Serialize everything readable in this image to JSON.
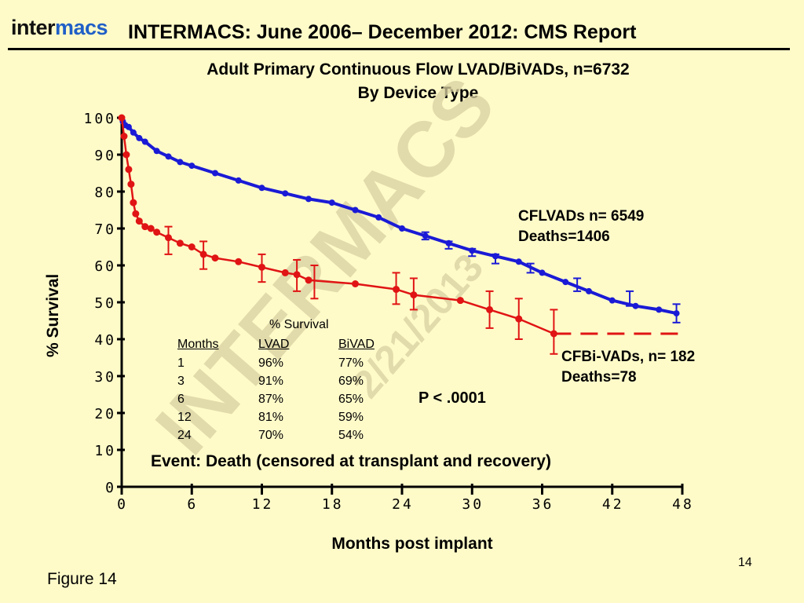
{
  "header": {
    "logo": {
      "text_dark": "inter",
      "text_brand": "macs",
      "brand_color": "#1f5fc7"
    },
    "title": "INTERMACS: June 2006– December 2012:  CMS Report"
  },
  "footer": {
    "figure_label": "Figure 14",
    "page_number": "14"
  },
  "watermark": {
    "main": "INTERMACS",
    "date": "2/21/2013"
  },
  "colors": {
    "background": "#fffbc9",
    "lvad": "#1a1ad6",
    "bivad": "#e01414"
  },
  "chart_data": {
    "type": "line",
    "title": "Adult Primary Continuous Flow LVAD/BiVADs, n=6732",
    "subtitle": "By Device Type",
    "xlabel": "Months post implant",
    "ylabel": "% Survival",
    "xlim": [
      0,
      48
    ],
    "ylim": [
      0,
      100
    ],
    "xticks": [
      0,
      6,
      12,
      18,
      24,
      30,
      36,
      42,
      48
    ],
    "yticks": [
      0,
      10,
      20,
      30,
      40,
      50,
      60,
      70,
      80,
      90,
      100
    ],
    "grid": false,
    "series": [
      {
        "name": "CFLVADs",
        "label_lines": [
          "CFLVADs n= 6549",
          "Deaths=1406"
        ],
        "color": "#1a1ad6",
        "x": [
          0,
          0.1,
          0.3,
          0.6,
          1,
          1.5,
          2,
          3,
          4,
          5,
          6,
          8,
          10,
          12,
          14,
          16,
          18,
          20,
          22,
          24,
          26,
          28,
          30,
          32,
          34,
          36,
          38,
          40,
          42,
          44,
          46,
          47.5
        ],
        "y": [
          100,
          99,
          98,
          97.5,
          96,
          94.5,
          93.5,
          91,
          89.5,
          88,
          87,
          85,
          83,
          81,
          79.5,
          78,
          77,
          75,
          73,
          70,
          68,
          66,
          64,
          62.5,
          61,
          58,
          55.5,
          53,
          50.5,
          49,
          48,
          47
        ],
        "error_bars": [
          {
            "x": 26,
            "low": 67,
            "high": 69
          },
          {
            "x": 28,
            "low": 64.5,
            "high": 66.5
          },
          {
            "x": 30,
            "low": 62.5,
            "high": 64.5
          },
          {
            "x": 32,
            "low": 60.5,
            "high": 63
          },
          {
            "x": 35,
            "low": 58,
            "high": 60.5
          },
          {
            "x": 39,
            "low": 53,
            "high": 56.5
          },
          {
            "x": 43.5,
            "low": 49,
            "high": 53
          },
          {
            "x": 47.5,
            "low": 44.5,
            "high": 49.5
          }
        ]
      },
      {
        "name": "CFBi-VADs",
        "label_lines": [
          "CFBi-VADs, n= 182",
          "Deaths=78"
        ],
        "color": "#e01414",
        "x": [
          0,
          0.2,
          0.4,
          0.6,
          0.8,
          1,
          1.2,
          1.5,
          2,
          2.5,
          3,
          4,
          5,
          6,
          7,
          8,
          10,
          12,
          14,
          15,
          16,
          20,
          23.5,
          25,
          29,
          31.5,
          34,
          37
        ],
        "y": [
          100,
          95,
          90,
          86,
          82,
          77,
          74,
          72,
          70.5,
          70,
          69,
          67.5,
          66,
          65,
          63,
          62,
          61,
          59.5,
          58,
          57.5,
          56,
          55,
          53.5,
          52,
          50.5,
          48,
          45.5,
          41.5
        ],
        "censor_extension": {
          "x": [
            37,
            48
          ],
          "y": 41.5
        },
        "error_bars": [
          {
            "x": 4,
            "low": 63,
            "high": 70.5
          },
          {
            "x": 7,
            "low": 59,
            "high": 66.5
          },
          {
            "x": 12,
            "low": 55.5,
            "high": 63
          },
          {
            "x": 15,
            "low": 53,
            "high": 61.5
          },
          {
            "x": 16.5,
            "low": 51,
            "high": 60
          },
          {
            "x": 23.5,
            "low": 49.5,
            "high": 58
          },
          {
            "x": 25,
            "low": 48,
            "high": 56.5
          },
          {
            "x": 31.5,
            "low": 43,
            "high": 53
          },
          {
            "x": 34,
            "low": 40,
            "high": 51
          },
          {
            "x": 37,
            "low": 36,
            "high": 48
          }
        ]
      }
    ],
    "p_value": "P < .0001",
    "event_note": "Event:  Death (censored at transplant and recovery)",
    "survival_table": {
      "caption": "% Survival",
      "headers": [
        "Months",
        "LVAD",
        "BiVAD"
      ],
      "rows": [
        [
          "1",
          "96%",
          "77%"
        ],
        [
          "3",
          "91%",
          "69%"
        ],
        [
          "6",
          "87%",
          "65%"
        ],
        [
          "12",
          "81%",
          "59%"
        ],
        [
          "24",
          "70%",
          "54%"
        ]
      ]
    }
  }
}
